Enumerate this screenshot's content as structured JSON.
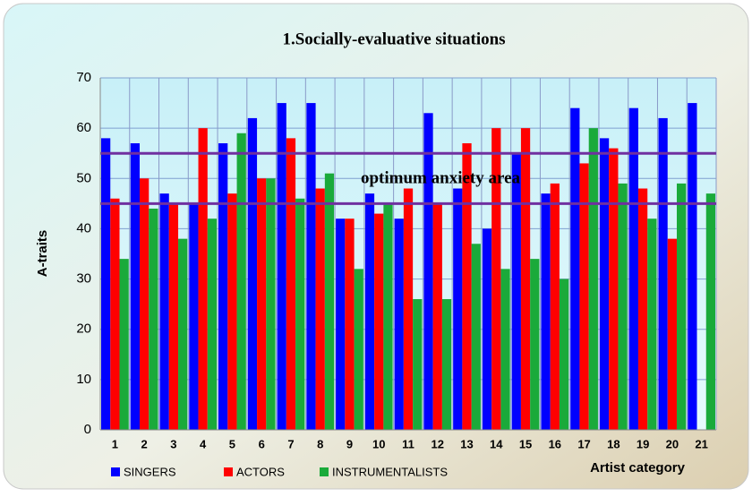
{
  "chart_data": {
    "type": "bar",
    "title": "1.Socially-evaluative situations",
    "y_label": "A-traits",
    "x_label": "Artist category",
    "annotation": "optimum anxiety area",
    "categories": [
      "1",
      "2",
      "3",
      "4",
      "5",
      "6",
      "7",
      "8",
      "9",
      "10",
      "11",
      "12",
      "13",
      "14",
      "15",
      "16",
      "17",
      "18",
      "19",
      "20",
      "21"
    ],
    "series": [
      {
        "name": "SINGERS",
        "color": "#0000ff",
        "values": [
          58,
          57,
          47,
          45,
          57,
          62,
          65,
          65,
          42,
          47,
          42,
          63,
          48,
          40,
          55,
          47,
          64,
          58,
          64,
          62,
          65
        ]
      },
      {
        "name": "ACTORS",
        "color": "#ff0000",
        "values": [
          46,
          50,
          45,
          60,
          47,
          50,
          58,
          48,
          42,
          43,
          48,
          45,
          57,
          60,
          60,
          49,
          53,
          56,
          48,
          38,
          null
        ]
      },
      {
        "name": "INSTRUMENTALISTS",
        "color": "#1aaa3a",
        "values": [
          34,
          44,
          38,
          42,
          59,
          50,
          46,
          51,
          32,
          45,
          26,
          26,
          37,
          32,
          34,
          30,
          60,
          49,
          42,
          49,
          47
        ]
      }
    ],
    "reference_lines": [
      45,
      55
    ],
    "reference_color": "#7030a0",
    "ylim": [
      0,
      70
    ],
    "yticks": [
      0,
      10,
      20,
      30,
      40,
      50,
      60,
      70
    ],
    "grid": true
  }
}
